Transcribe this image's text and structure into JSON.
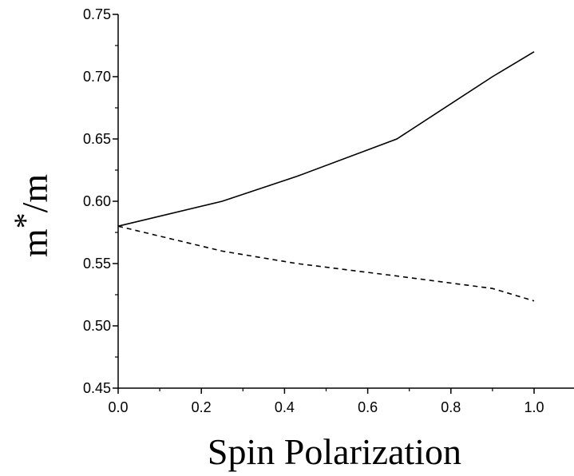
{
  "chart_data": {
    "type": "line",
    "title": "",
    "xlabel": "Spin Polarization",
    "ylabel": {
      "base": "m",
      "superscript": "*",
      "suffix": "/m"
    },
    "xlim": [
      0.0,
      1.0
    ],
    "ylim": [
      0.45,
      0.75
    ],
    "x_ticks": [
      "0.0",
      "0.2",
      "0.4",
      "0.6",
      "0.8",
      "1.0"
    ],
    "y_ticks": [
      "0.45",
      "0.50",
      "0.55",
      "0.60",
      "0.65",
      "0.70",
      "0.75"
    ],
    "grid": false,
    "legend": "none",
    "series": [
      {
        "style": "solid",
        "color": "#000000",
        "x": [
          0.0,
          0.25,
          0.43,
          0.67,
          0.9,
          1.0
        ],
        "y": [
          0.58,
          0.6,
          0.62,
          0.65,
          0.7,
          0.72
        ]
      },
      {
        "style": "dashed",
        "color": "#000000",
        "x": [
          0.0,
          0.25,
          0.43,
          0.67,
          0.9,
          1.0
        ],
        "y": [
          0.58,
          0.56,
          0.55,
          0.54,
          0.53,
          0.52
        ]
      }
    ]
  }
}
